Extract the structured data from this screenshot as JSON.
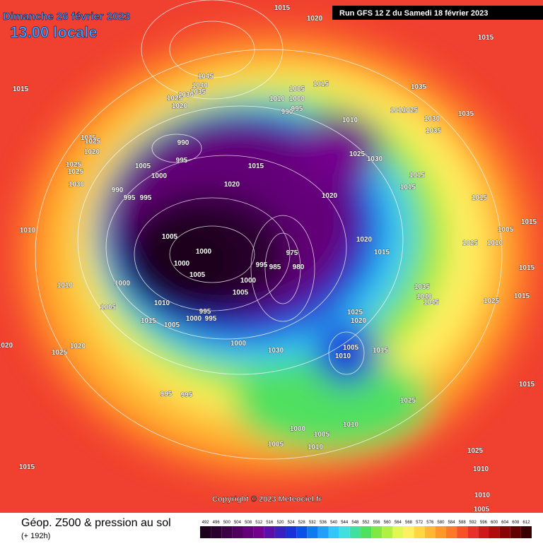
{
  "header": {
    "date": "Dimanche 26 février 2023",
    "time": "13.00 locale",
    "run": "Run GFS 12 Z du Samedi 18 février 2023",
    "copyright": "Copyright © 2023 Meteociel.fr"
  },
  "legend": {
    "title": "Géop. Z500 & pression au sol",
    "subtitle": "(+ 192h)",
    "scale": [
      {
        "value": 492,
        "color": "#1c001c"
      },
      {
        "value": 496,
        "color": "#2a002e"
      },
      {
        "value": 500,
        "color": "#3c0046"
      },
      {
        "value": 504,
        "color": "#50005e"
      },
      {
        "value": 508,
        "color": "#640078"
      },
      {
        "value": 512,
        "color": "#74008e"
      },
      {
        "value": 516,
        "color": "#5a10a8"
      },
      {
        "value": 520,
        "color": "#3a20c0"
      },
      {
        "value": 524,
        "color": "#1a30d8"
      },
      {
        "value": 528,
        "color": "#0a50e8"
      },
      {
        "value": 532,
        "color": "#1078f0"
      },
      {
        "value": 536,
        "color": "#20a0f8"
      },
      {
        "value": 540,
        "color": "#30c8f8"
      },
      {
        "value": 544,
        "color": "#40e0e0"
      },
      {
        "value": 548,
        "color": "#40e0a0"
      },
      {
        "value": 552,
        "color": "#50e060"
      },
      {
        "value": 556,
        "color": "#80e840"
      },
      {
        "value": 560,
        "color": "#b0f040"
      },
      {
        "value": 564,
        "color": "#e0f850"
      },
      {
        "value": 568,
        "color": "#fff060"
      },
      {
        "value": 572,
        "color": "#ffd840"
      },
      {
        "value": 576,
        "color": "#ffb830"
      },
      {
        "value": 580,
        "color": "#ff9828"
      },
      {
        "value": 584,
        "color": "#ff7828"
      },
      {
        "value": 588,
        "color": "#f85028"
      },
      {
        "value": 592,
        "color": "#e83028"
      },
      {
        "value": 596,
        "color": "#d01818"
      },
      {
        "value": 600,
        "color": "#b00c0c"
      },
      {
        "value": 604,
        "color": "#880404"
      },
      {
        "value": 608,
        "color": "#600000"
      },
      {
        "value": 612,
        "color": "#380000"
      }
    ]
  },
  "isobar_labels": [
    1015,
    1020,
    1015,
    1045,
    1040,
    1035,
    1030,
    1025,
    1020,
    1010,
    1000,
    995,
    990,
    1005,
    1015,
    1035,
    1025,
    1010,
    1035,
    1030,
    1035,
    1015,
    1010,
    1025,
    1030,
    990,
    995,
    1005,
    1000,
    1015,
    1025,
    1020,
    1025,
    1025,
    1030,
    990,
    995,
    995,
    1010,
    1015,
    1020,
    1020,
    1015,
    1015,
    1015,
    1005,
    1000,
    1000,
    1005,
    975,
    995,
    985,
    980,
    1000,
    1005,
    1020,
    1015,
    1025,
    1010,
    1005,
    1015,
    1015,
    1010,
    1000,
    1010,
    1005,
    1015,
    1005,
    1000,
    995,
    995,
    1035,
    1040,
    1045,
    1025,
    1025,
    1020,
    1005,
    1010,
    1015,
    1000,
    1030,
    1020,
    1025,
    1020,
    995,
    995,
    1025,
    1015,
    1010,
    1000,
    1005,
    1005,
    1010,
    1025,
    1010,
    1010,
    1005,
    1015,
    1015
  ]
}
